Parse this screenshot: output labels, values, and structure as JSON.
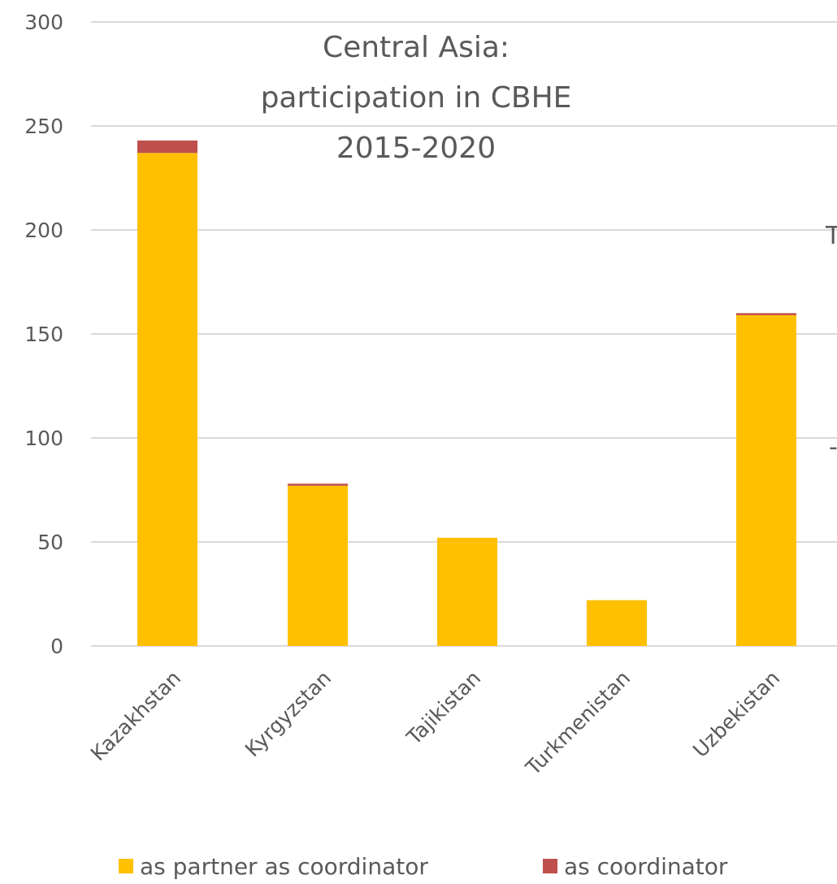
{
  "chart_data": {
    "type": "bar",
    "stacked": true,
    "title": [
      "Central Asia:",
      "participation in CBHE",
      "2015-2020"
    ],
    "categories": [
      "Kazakhstan",
      "Kyrgyzstan",
      "Tajikistan",
      "Turkmenistan",
      "Uzbekistan"
    ],
    "series": [
      {
        "name": "as partner as coordinator",
        "color": "#FFC000",
        "values": [
          237,
          77,
          52,
          22,
          159
        ]
      },
      {
        "name": "as coordinator",
        "color": "#C0504D",
        "values": [
          6,
          1,
          0,
          0,
          1
        ]
      }
    ],
    "ylim": [
      0,
      300
    ],
    "yticks": [
      0,
      50,
      100,
      150,
      200,
      250,
      300
    ],
    "grid": true,
    "legend_position": "bottom",
    "xlabel": "",
    "ylabel": ""
  },
  "edge_fragments": [
    "T",
    "-"
  ]
}
